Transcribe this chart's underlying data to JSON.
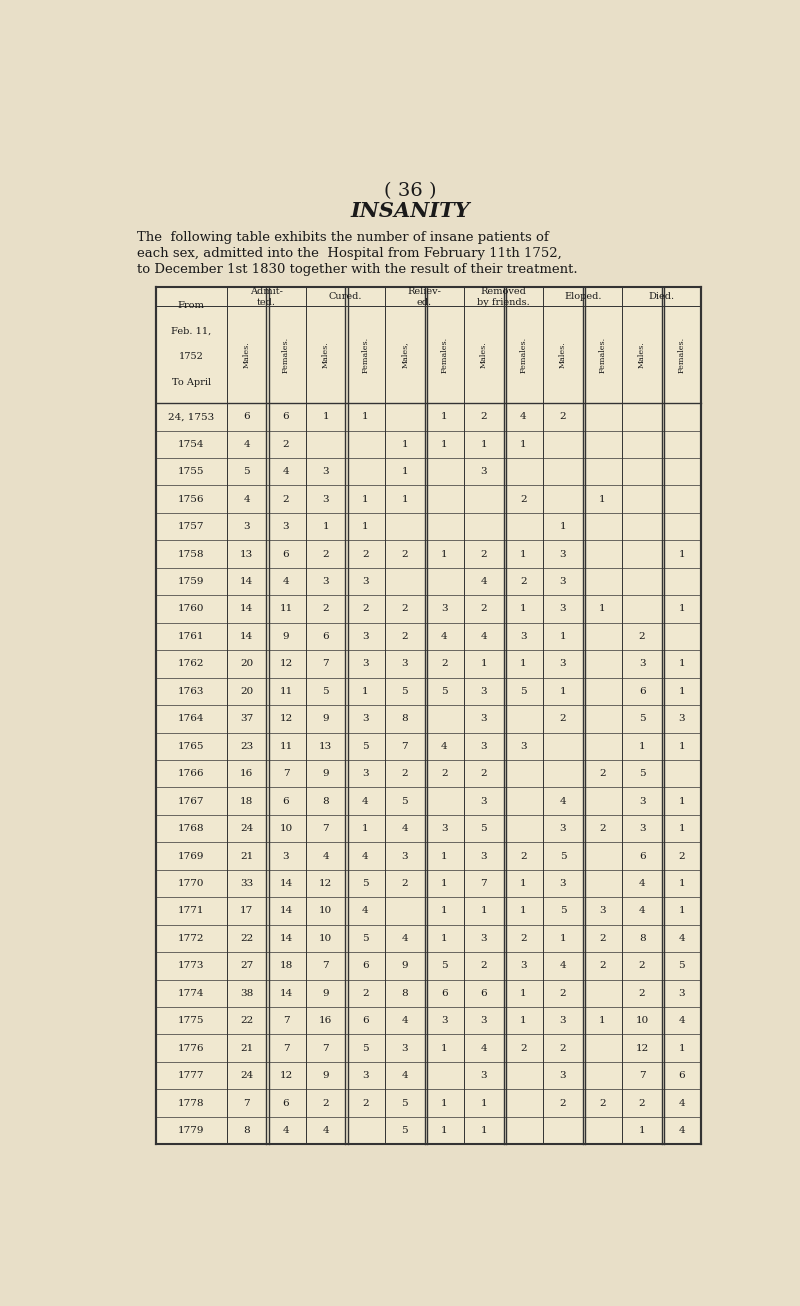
{
  "page_number": "( 36 )",
  "title": "INSANITY",
  "subtitle_line1": "The  following table exhibits the number of insane patients of",
  "subtitle_line2": "each sex, admitted into the  Hospital from February 11th 1752,",
  "subtitle_line3": "to December 1st 1830 together with the result of their treatment.",
  "bg_color": "#e8dfc8",
  "text_color": "#1a1a1a",
  "col_groups": [
    "Admit-\nted.",
    "Cured.",
    "Reliev-\ned.",
    "Removed\nby friends.",
    "Eloped.",
    "Died."
  ],
  "sub_cols": [
    "Males.",
    "Females.",
    "Males.",
    "Females.",
    "Males,",
    "Females.",
    "Males.",
    "Females.",
    "Males.",
    "Females.",
    "Males.",
    "Females."
  ],
  "row_label_header": [
    "From",
    "Feb. 11,",
    "1752",
    "To April"
  ],
  "rows": [
    {
      "year": "24, 1753",
      "data": [
        "6",
        "6",
        "1",
        "1",
        "",
        "1",
        "2",
        "4",
        "2",
        "",
        "",
        ""
      ]
    },
    {
      "year": "1754",
      "data": [
        "4",
        "2",
        "",
        "",
        "1",
        "1",
        "1",
        "1",
        "",
        "",
        "",
        ""
      ]
    },
    {
      "year": "1755",
      "data": [
        "5",
        "4",
        "3",
        "",
        "1",
        "",
        "3",
        "",
        "",
        "",
        "",
        ""
      ]
    },
    {
      "year": "1756",
      "data": [
        "4",
        "2",
        "3",
        "1",
        "1",
        "",
        "",
        "2",
        "",
        "1",
        "",
        ""
      ]
    },
    {
      "year": "1757",
      "data": [
        "3",
        "3",
        "1",
        "1",
        "",
        "",
        "",
        "",
        "1",
        "",
        "",
        ""
      ]
    },
    {
      "year": "1758",
      "data": [
        "13",
        "6",
        "2",
        "2",
        "2",
        "1",
        "2",
        "1",
        "3",
        "",
        "",
        "1"
      ]
    },
    {
      "year": "1759",
      "data": [
        "14",
        "4",
        "3",
        "3",
        "",
        "",
        "4",
        "2",
        "3",
        "",
        "",
        ""
      ]
    },
    {
      "year": "1760",
      "data": [
        "14",
        "11",
        "2",
        "2",
        "2",
        "3",
        "2",
        "1",
        "3",
        "1",
        "",
        "1"
      ]
    },
    {
      "year": "1761",
      "data": [
        "14",
        "9",
        "6",
        "3",
        "2",
        "4",
        "4",
        "3",
        "1",
        "",
        "2",
        ""
      ]
    },
    {
      "year": "1762",
      "data": [
        "20",
        "12",
        "7",
        "3",
        "3",
        "2",
        "1",
        "1",
        "3",
        "",
        "3",
        "1"
      ]
    },
    {
      "year": "1763",
      "data": [
        "20",
        "11",
        "5",
        "1",
        "5",
        "5",
        "3",
        "5",
        "1",
        "",
        "6",
        "1"
      ]
    },
    {
      "year": "1764",
      "data": [
        "37",
        "12",
        "9",
        "3",
        "8",
        "",
        "3",
        "",
        "2",
        "",
        "5",
        "3"
      ]
    },
    {
      "year": "1765",
      "data": [
        "23",
        "11",
        "13",
        "5",
        "7",
        "4",
        "3",
        "3",
        "",
        "",
        "1",
        "1"
      ]
    },
    {
      "year": "1766",
      "data": [
        "16",
        "7",
        "9",
        "3",
        "2",
        "2",
        "2",
        "",
        "",
        "2",
        "5",
        ""
      ]
    },
    {
      "year": "1767",
      "data": [
        "18",
        "6",
        "8",
        "4",
        "5",
        "",
        "3",
        "",
        "4",
        "",
        "3",
        "1"
      ]
    },
    {
      "year": "1768",
      "data": [
        "24",
        "10",
        "7",
        "1",
        "4",
        "3",
        "5",
        "",
        "3",
        "2",
        "3",
        "1"
      ]
    },
    {
      "year": "1769",
      "data": [
        "21",
        "3",
        "4",
        "4",
        "3",
        "1",
        "3",
        "2",
        "5",
        "",
        "6",
        "2"
      ]
    },
    {
      "year": "1770",
      "data": [
        "33",
        "14",
        "12",
        "5",
        "2",
        "1",
        "7",
        "1",
        "3",
        "",
        "4",
        "1"
      ]
    },
    {
      "year": "1771",
      "data": [
        "17",
        "14",
        "10",
        "4",
        "",
        "1",
        "1",
        "1",
        "5",
        "3",
        "4",
        "1"
      ]
    },
    {
      "year": "1772",
      "data": [
        "22",
        "14",
        "10",
        "5",
        "4",
        "1",
        "3",
        "2",
        "1",
        "2",
        "8",
        "4"
      ]
    },
    {
      "year": "1773",
      "data": [
        "27",
        "18",
        "7",
        "6",
        "9",
        "5",
        "2",
        "3",
        "4",
        "2",
        "2",
        "5"
      ]
    },
    {
      "year": "1774",
      "data": [
        "38",
        "14",
        "9",
        "2",
        "8",
        "6",
        "6",
        "1",
        "2",
        "",
        "2",
        "3"
      ]
    },
    {
      "year": "1775",
      "data": [
        "22",
        "7",
        "16",
        "6",
        "4",
        "3",
        "3",
        "1",
        "3",
        "1",
        "10",
        "4"
      ]
    },
    {
      "year": "1776",
      "data": [
        "21",
        "7",
        "7",
        "5",
        "3",
        "1",
        "4",
        "2",
        "2",
        "",
        "12",
        "1"
      ]
    },
    {
      "year": "1777",
      "data": [
        "24",
        "12",
        "9",
        "3",
        "4",
        "",
        "3",
        "",
        "3",
        "",
        "7",
        "6"
      ]
    },
    {
      "year": "1778",
      "data": [
        "7",
        "6",
        "2",
        "2",
        "5",
        "1",
        "1",
        "",
        "2",
        "2",
        "2",
        "4"
      ]
    },
    {
      "year": "1779",
      "data": [
        "8",
        "4",
        "4",
        "",
        "5",
        "1",
        "1",
        "",
        "",
        "",
        "1",
        "4"
      ]
    }
  ]
}
